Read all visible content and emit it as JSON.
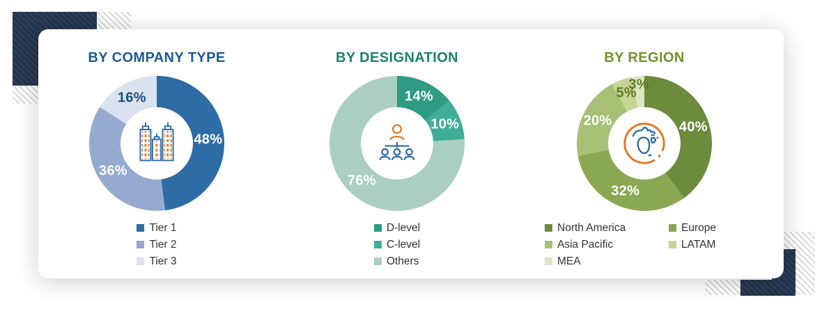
{
  "chart_data": [
    {
      "type": "pie",
      "donut": true,
      "title": "BY COMPANY TYPE",
      "title_color": "#1C5A96",
      "center_icon": "buildings-icon",
      "labels": [
        "Tier 1",
        "Tier 2",
        "Tier 3"
      ],
      "values": [
        48,
        36,
        16
      ],
      "unit": "%",
      "colors": [
        "#2E6CA6",
        "#94AACE",
        "#DAE1EF"
      ],
      "label_colors": [
        "#ffffff",
        "#ffffff",
        "#1D4E79"
      ],
      "legend_position": "bottom"
    },
    {
      "type": "pie",
      "donut": true,
      "title": "BY DESIGNATION",
      "title_color": "#17836B",
      "center_icon": "org-chart-icon",
      "labels": [
        "D-level",
        "C-level",
        "Others"
      ],
      "values": [
        14,
        10,
        76
      ],
      "unit": "%",
      "colors": [
        "#2E9B82",
        "#40AE97",
        "#AACFC1"
      ],
      "label_colors": [
        "#ffffff",
        "#ffffff",
        "#ffffff"
      ],
      "legend_position": "bottom"
    },
    {
      "type": "pie",
      "donut": true,
      "title": "BY REGION",
      "title_color": "#6F9428",
      "center_icon": "globe-icon",
      "labels": [
        "North America",
        "Europe",
        "Asia Pacific",
        "LATAM",
        "MEA"
      ],
      "values": [
        40,
        32,
        20,
        5,
        3
      ],
      "unit": "%",
      "colors": [
        "#6C8B3D",
        "#8AA851",
        "#A7C075",
        "#C5D595",
        "#DDE6C3"
      ],
      "label_colors": [
        "#ffffff",
        "#ffffff",
        "#ffffff",
        "#5C7A26",
        "#5C7A26"
      ],
      "legend_position": "bottom",
      "legend_columns": 2
    }
  ],
  "legend_text_color": "#333333",
  "decor": {
    "corner_color": "#22334C",
    "stripe_color": "#D6D6D6",
    "icon_accent_orange": "#E87722",
    "icon_accent_blue": "#2A6CA8"
  }
}
